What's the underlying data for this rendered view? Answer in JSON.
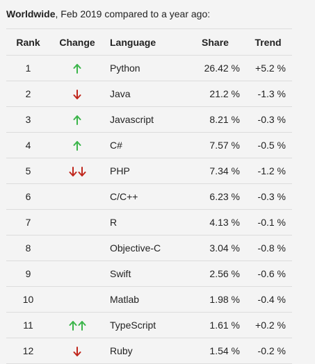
{
  "caption": {
    "bold": "Worldwide",
    "rest": ", Feb 2019 compared to a year ago:"
  },
  "headers": {
    "rank": "Rank",
    "change": "Change",
    "language": "Language",
    "share": "Share",
    "trend": "Trend"
  },
  "colors": {
    "up": "#3bb54a",
    "down": "#c0261c"
  },
  "rows": [
    {
      "rank": "1",
      "change": "up",
      "language": "Python",
      "share": "26.42 %",
      "trend": "+5.2 %"
    },
    {
      "rank": "2",
      "change": "down",
      "language": "Java",
      "share": "21.2 %",
      "trend": "-1.3 %"
    },
    {
      "rank": "3",
      "change": "up",
      "language": "Javascript",
      "share": "8.21 %",
      "trend": "-0.3 %"
    },
    {
      "rank": "4",
      "change": "up",
      "language": "C#",
      "share": "7.57 %",
      "trend": "-0.5 %"
    },
    {
      "rank": "5",
      "change": "double-down",
      "language": "PHP",
      "share": "7.34 %",
      "trend": "-1.2 %"
    },
    {
      "rank": "6",
      "change": "none",
      "language": "C/C++",
      "share": "6.23 %",
      "trend": "-0.3 %"
    },
    {
      "rank": "7",
      "change": "none",
      "language": "R",
      "share": "4.13 %",
      "trend": "-0.1 %"
    },
    {
      "rank": "8",
      "change": "none",
      "language": "Objective-C",
      "share": "3.04 %",
      "trend": "-0.8 %"
    },
    {
      "rank": "9",
      "change": "none",
      "language": "Swift",
      "share": "2.56 %",
      "trend": "-0.6 %"
    },
    {
      "rank": "10",
      "change": "none",
      "language": "Matlab",
      "share": "1.98 %",
      "trend": "-0.4 %"
    },
    {
      "rank": "11",
      "change": "double-up",
      "language": "TypeScript",
      "share": "1.61 %",
      "trend": "+0.2 %"
    },
    {
      "rank": "12",
      "change": "down",
      "language": "Ruby",
      "share": "1.54 %",
      "trend": "-0.2 %"
    }
  ]
}
